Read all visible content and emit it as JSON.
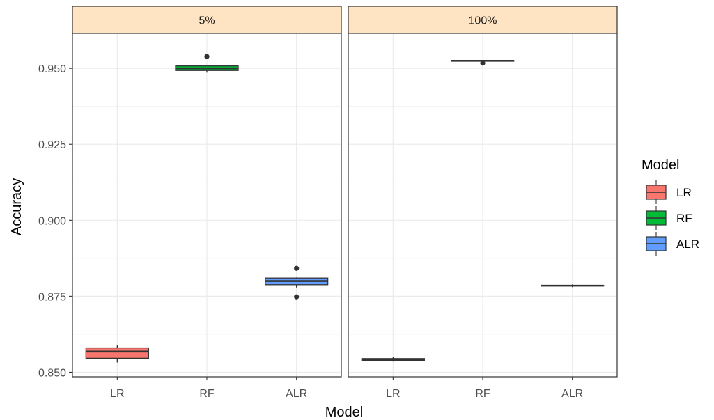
{
  "chart_data": {
    "type": "box",
    "xlabel": "Model",
    "ylabel": "Accuracy",
    "ylim": [
      0.8485,
      0.9615
    ],
    "yticks": [
      "0.850",
      "0.875",
      "0.900",
      "0.925",
      "0.950"
    ],
    "grid": true,
    "categories": [
      "LR",
      "RF",
      "ALR"
    ],
    "colors": {
      "LR": "#f8766d",
      "RF": "#00ba38",
      "ALR": "#619cff"
    },
    "legend": {
      "title": "Model",
      "position": "right",
      "entries": [
        "LR",
        "RF",
        "ALR"
      ]
    },
    "facets": [
      {
        "label": "5%",
        "boxes": [
          {
            "category": "LR",
            "lower_whisker": 0.8532,
            "q1": 0.8546,
            "median": 0.8568,
            "q3": 0.858,
            "upper_whisker": 0.8588,
            "outliers": []
          },
          {
            "category": "RF",
            "lower_whisker": 0.9486,
            "q1": 0.9493,
            "median": 0.95,
            "q3": 0.9508,
            "upper_whisker": 0.9508,
            "outliers": [
              0.9539
            ]
          },
          {
            "category": "ALR",
            "lower_whisker": 0.8779,
            "q1": 0.8788,
            "median": 0.88,
            "q3": 0.881,
            "upper_whisker": 0.8812,
            "outliers": [
              0.8842,
              0.8748
            ]
          }
        ]
      },
      {
        "label": "100%",
        "boxes": [
          {
            "category": "LR",
            "lower_whisker": 0.8535,
            "q1": 0.8538,
            "median": 0.8541,
            "q3": 0.8545,
            "upper_whisker": 0.8549,
            "outliers": []
          },
          {
            "category": "RF",
            "lower_whisker": 0.9521,
            "q1": 0.9525,
            "median": 0.9525,
            "q3": 0.9525,
            "upper_whisker": 0.9528,
            "outliers": [
              0.9517
            ]
          },
          {
            "category": "ALR",
            "lower_whisker": 0.878,
            "q1": 0.8784,
            "median": 0.8785,
            "q3": 0.8786,
            "upper_whisker": 0.8789,
            "outliers": []
          }
        ]
      }
    ]
  }
}
